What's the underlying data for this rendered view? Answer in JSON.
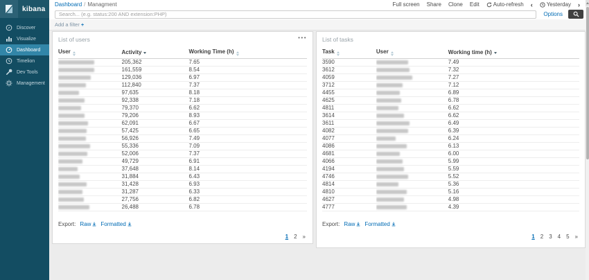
{
  "sidebar": {
    "brand": "kibana",
    "items": [
      {
        "label": "Discover",
        "icon": "compass-icon",
        "active": false
      },
      {
        "label": "Visualize",
        "icon": "bar-chart-icon",
        "active": false
      },
      {
        "label": "Dashboard",
        "icon": "gauge-icon",
        "active": true
      },
      {
        "label": "Timelion",
        "icon": "clock-icon",
        "active": false
      },
      {
        "label": "Dev Tools",
        "icon": "wrench-icon",
        "active": false
      },
      {
        "label": "Management",
        "icon": "gear-icon",
        "active": false
      }
    ]
  },
  "topnav": {
    "breadcrumb": {
      "root": "Dashboard",
      "separator": "/",
      "current": "Managment"
    },
    "actions": {
      "full_screen": "Full screen",
      "share": "Share",
      "clone": "Clone",
      "edit": "Edit",
      "auto_refresh": "Auto-refresh"
    },
    "time": {
      "prev": "‹",
      "label": "Yesterday",
      "next": "›"
    }
  },
  "search": {
    "placeholder": "Search... (e.g. status:200 AND extension:PHP)",
    "options_label": "Options"
  },
  "filter_bar": {
    "label": "Add a filter",
    "add_icon": "+"
  },
  "panels": {
    "users": {
      "title": "List of users",
      "menu_glyph": "•••",
      "columns": [
        {
          "label": "User",
          "sort": "both"
        },
        {
          "label": "Activity",
          "sort": "desc"
        },
        {
          "label": "Working Time (h)",
          "sort": "both"
        }
      ],
      "rows": [
        {
          "activity": "205,362",
          "time": "7.65",
          "blur": 52
        },
        {
          "activity": "161,559",
          "time": "8.54",
          "blur": 52
        },
        {
          "activity": "129,036",
          "time": "6.97",
          "blur": 47
        },
        {
          "activity": "112,840",
          "time": "7.37",
          "blur": 40
        },
        {
          "activity": "97,635",
          "time": "8.18",
          "blur": 30
        },
        {
          "activity": "92,338",
          "time": "7.18",
          "blur": 38
        },
        {
          "activity": "79,370",
          "time": "6.62",
          "blur": 33
        },
        {
          "activity": "79,206",
          "time": "8.93",
          "blur": 38
        },
        {
          "activity": "62,091",
          "time": "6.67",
          "blur": 43
        },
        {
          "activity": "57,425",
          "time": "6.65",
          "blur": 41
        },
        {
          "activity": "56,926",
          "time": "7.49",
          "blur": 40
        },
        {
          "activity": "55,336",
          "time": "7.09",
          "blur": 46
        },
        {
          "activity": "52,006",
          "time": "7.37",
          "blur": 42
        },
        {
          "activity": "49,729",
          "time": "6.91",
          "blur": 35
        },
        {
          "activity": "37,648",
          "time": "8.14",
          "blur": 28
        },
        {
          "activity": "31,884",
          "time": "6.43",
          "blur": 31
        },
        {
          "activity": "31,428",
          "time": "6.93",
          "blur": 41
        },
        {
          "activity": "31,287",
          "time": "6.33",
          "blur": 35
        },
        {
          "activity": "27,756",
          "time": "6.82",
          "blur": 37
        },
        {
          "activity": "26,488",
          "time": "6.78",
          "blur": 45
        }
      ],
      "export_label": "Export:",
      "raw_label": "Raw",
      "formatted_label": "Formatted",
      "pagination": [
        "1",
        "2",
        "»"
      ],
      "active_page": "1"
    },
    "tasks": {
      "title": "List of tasks",
      "columns": [
        {
          "label": "Task",
          "sort": "both"
        },
        {
          "label": "User",
          "sort": "both"
        },
        {
          "label": "Working time (h)",
          "sort": "desc"
        }
      ],
      "rows": [
        {
          "task": "3590",
          "time": "7.49",
          "blur": 46
        },
        {
          "task": "3612",
          "time": "7.32",
          "blur": 48
        },
        {
          "task": "4059",
          "time": "7.27",
          "blur": 52
        },
        {
          "task": "3712",
          "time": "7.12",
          "blur": 38
        },
        {
          "task": "4455",
          "time": "6.89",
          "blur": 34
        },
        {
          "task": "4625",
          "time": "6.78",
          "blur": 36
        },
        {
          "task": "4811",
          "time": "6.62",
          "blur": 32
        },
        {
          "task": "3614",
          "time": "6.62",
          "blur": 40
        },
        {
          "task": "3611",
          "time": "6.49",
          "blur": 48
        },
        {
          "task": "4082",
          "time": "6.39",
          "blur": 46
        },
        {
          "task": "4077",
          "time": "6.24",
          "blur": 28
        },
        {
          "task": "4086",
          "time": "6.13",
          "blur": 44
        },
        {
          "task": "4681",
          "time": "6.00",
          "blur": 34
        },
        {
          "task": "4066",
          "time": "5.99",
          "blur": 38
        },
        {
          "task": "4194",
          "time": "5.59",
          "blur": 40
        },
        {
          "task": "4746",
          "time": "5.52",
          "blur": 46
        },
        {
          "task": "4814",
          "time": "5.36",
          "blur": 32
        },
        {
          "task": "4810",
          "time": "5.16",
          "blur": 44
        },
        {
          "task": "4627",
          "time": "4.98",
          "blur": 40
        },
        {
          "task": "4777",
          "time": "4.39",
          "blur": 44
        }
      ],
      "export_label": "Export:",
      "raw_label": "Raw",
      "formatted_label": "Formatted",
      "pagination": [
        "1",
        "2",
        "3",
        "4",
        "5",
        "»"
      ],
      "active_page": "1"
    }
  },
  "colors": {
    "sidebar": "#134d62",
    "sidebar_active": "#3286a8",
    "link": "#006bb4",
    "button_dark": "#404040",
    "dashboard_bg": "#ececec"
  }
}
